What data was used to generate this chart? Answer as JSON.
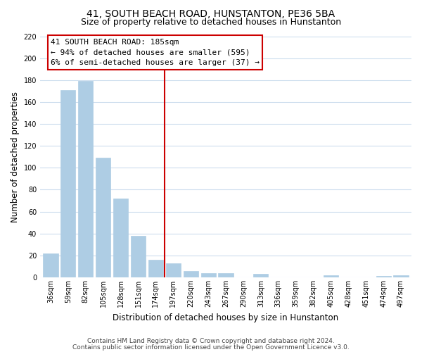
{
  "title": "41, SOUTH BEACH ROAD, HUNSTANTON, PE36 5BA",
  "subtitle": "Size of property relative to detached houses in Hunstanton",
  "xlabel": "Distribution of detached houses by size in Hunstanton",
  "ylabel": "Number of detached properties",
  "categories": [
    "36sqm",
    "59sqm",
    "82sqm",
    "105sqm",
    "128sqm",
    "151sqm",
    "174sqm",
    "197sqm",
    "220sqm",
    "243sqm",
    "267sqm",
    "290sqm",
    "313sqm",
    "336sqm",
    "359sqm",
    "382sqm",
    "405sqm",
    "428sqm",
    "451sqm",
    "474sqm",
    "497sqm"
  ],
  "values": [
    22,
    171,
    179,
    109,
    72,
    38,
    16,
    13,
    6,
    4,
    4,
    0,
    3,
    0,
    0,
    0,
    2,
    0,
    0,
    1,
    2
  ],
  "bar_color": "#aecde4",
  "bar_edge_color": "#aecde4",
  "vline_x_index": 6.5,
  "vline_color": "#cc0000",
  "annotation_title": "41 SOUTH BEACH ROAD: 185sqm",
  "annotation_line1": "← 94% of detached houses are smaller (595)",
  "annotation_line2": "6% of semi-detached houses are larger (37) →",
  "annotation_box_color": "#ffffff",
  "annotation_box_edge": "#cc0000",
  "ylim": [
    0,
    220
  ],
  "yticks": [
    0,
    20,
    40,
    60,
    80,
    100,
    120,
    140,
    160,
    180,
    200,
    220
  ],
  "footer1": "Contains HM Land Registry data © Crown copyright and database right 2024.",
  "footer2": "Contains public sector information licensed under the Open Government Licence v3.0.",
  "background_color": "#ffffff",
  "grid_color": "#ccdded",
  "title_fontsize": 10,
  "subtitle_fontsize": 9,
  "axis_label_fontsize": 8.5,
  "tick_fontsize": 7,
  "annotation_fontsize": 8,
  "footer_fontsize": 6.5
}
